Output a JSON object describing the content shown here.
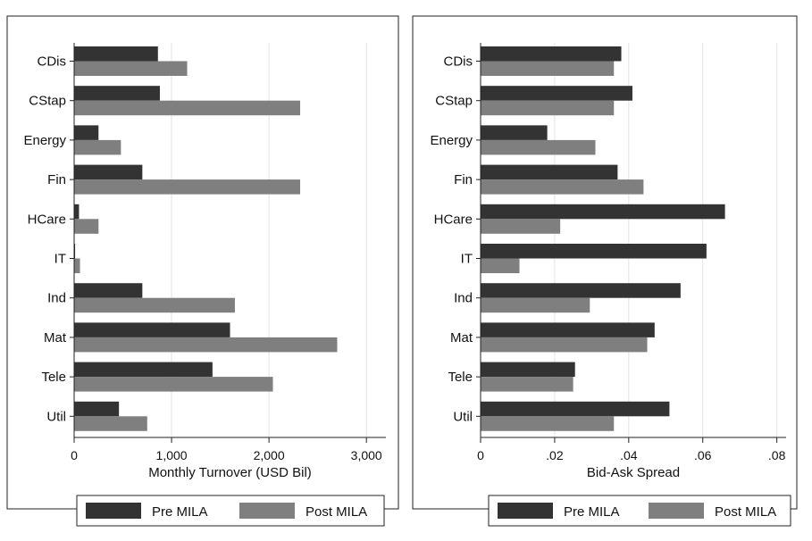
{
  "colors": {
    "pre": "#333333",
    "post": "#7f7f7f"
  },
  "chart_data": [
    {
      "type": "bar",
      "orientation": "horizontal",
      "categories": [
        "CDis",
        "CStap",
        "Energy",
        "Fin",
        "HCare",
        "IT",
        "Ind",
        "Mat",
        "Tele",
        "Util"
      ],
      "series": [
        {
          "name": "Pre MILA",
          "values": [
            860,
            880,
            250,
            700,
            50,
            10,
            700,
            1600,
            1420,
            460
          ]
        },
        {
          "name": "Post MILA",
          "values": [
            1160,
            2320,
            480,
            2320,
            250,
            60,
            1650,
            2700,
            2040,
            750
          ]
        }
      ],
      "xlabel": "Monthly Turnover (USD Bil)",
      "xlim": [
        0,
        3200
      ],
      "xticks": [
        0,
        1000,
        2000,
        3000
      ],
      "xtick_labels": [
        "0",
        "1,000",
        "2,000",
        "3,000"
      ],
      "grid": true,
      "legend_position": "bottom"
    },
    {
      "type": "bar",
      "orientation": "horizontal",
      "categories": [
        "CDis",
        "CStap",
        "Energy",
        "Fin",
        "HCare",
        "IT",
        "Ind",
        "Mat",
        "Tele",
        "Util"
      ],
      "series": [
        {
          "name": "Pre MILA",
          "values": [
            0.038,
            0.041,
            0.018,
            0.037,
            0.066,
            0.061,
            0.054,
            0.047,
            0.0255,
            0.051
          ]
        },
        {
          "name": "Post MILA",
          "values": [
            0.036,
            0.036,
            0.031,
            0.044,
            0.0215,
            0.0105,
            0.0295,
            0.045,
            0.025,
            0.036
          ]
        }
      ],
      "xlabel": "Bid-Ask Spread",
      "xlim": [
        0,
        0.0825
      ],
      "xticks": [
        0,
        0.02,
        0.04,
        0.06,
        0.08
      ],
      "xtick_labels": [
        "0",
        ".02",
        ".04",
        ".06",
        ".08"
      ],
      "grid": true,
      "legend_position": "bottom"
    }
  ]
}
